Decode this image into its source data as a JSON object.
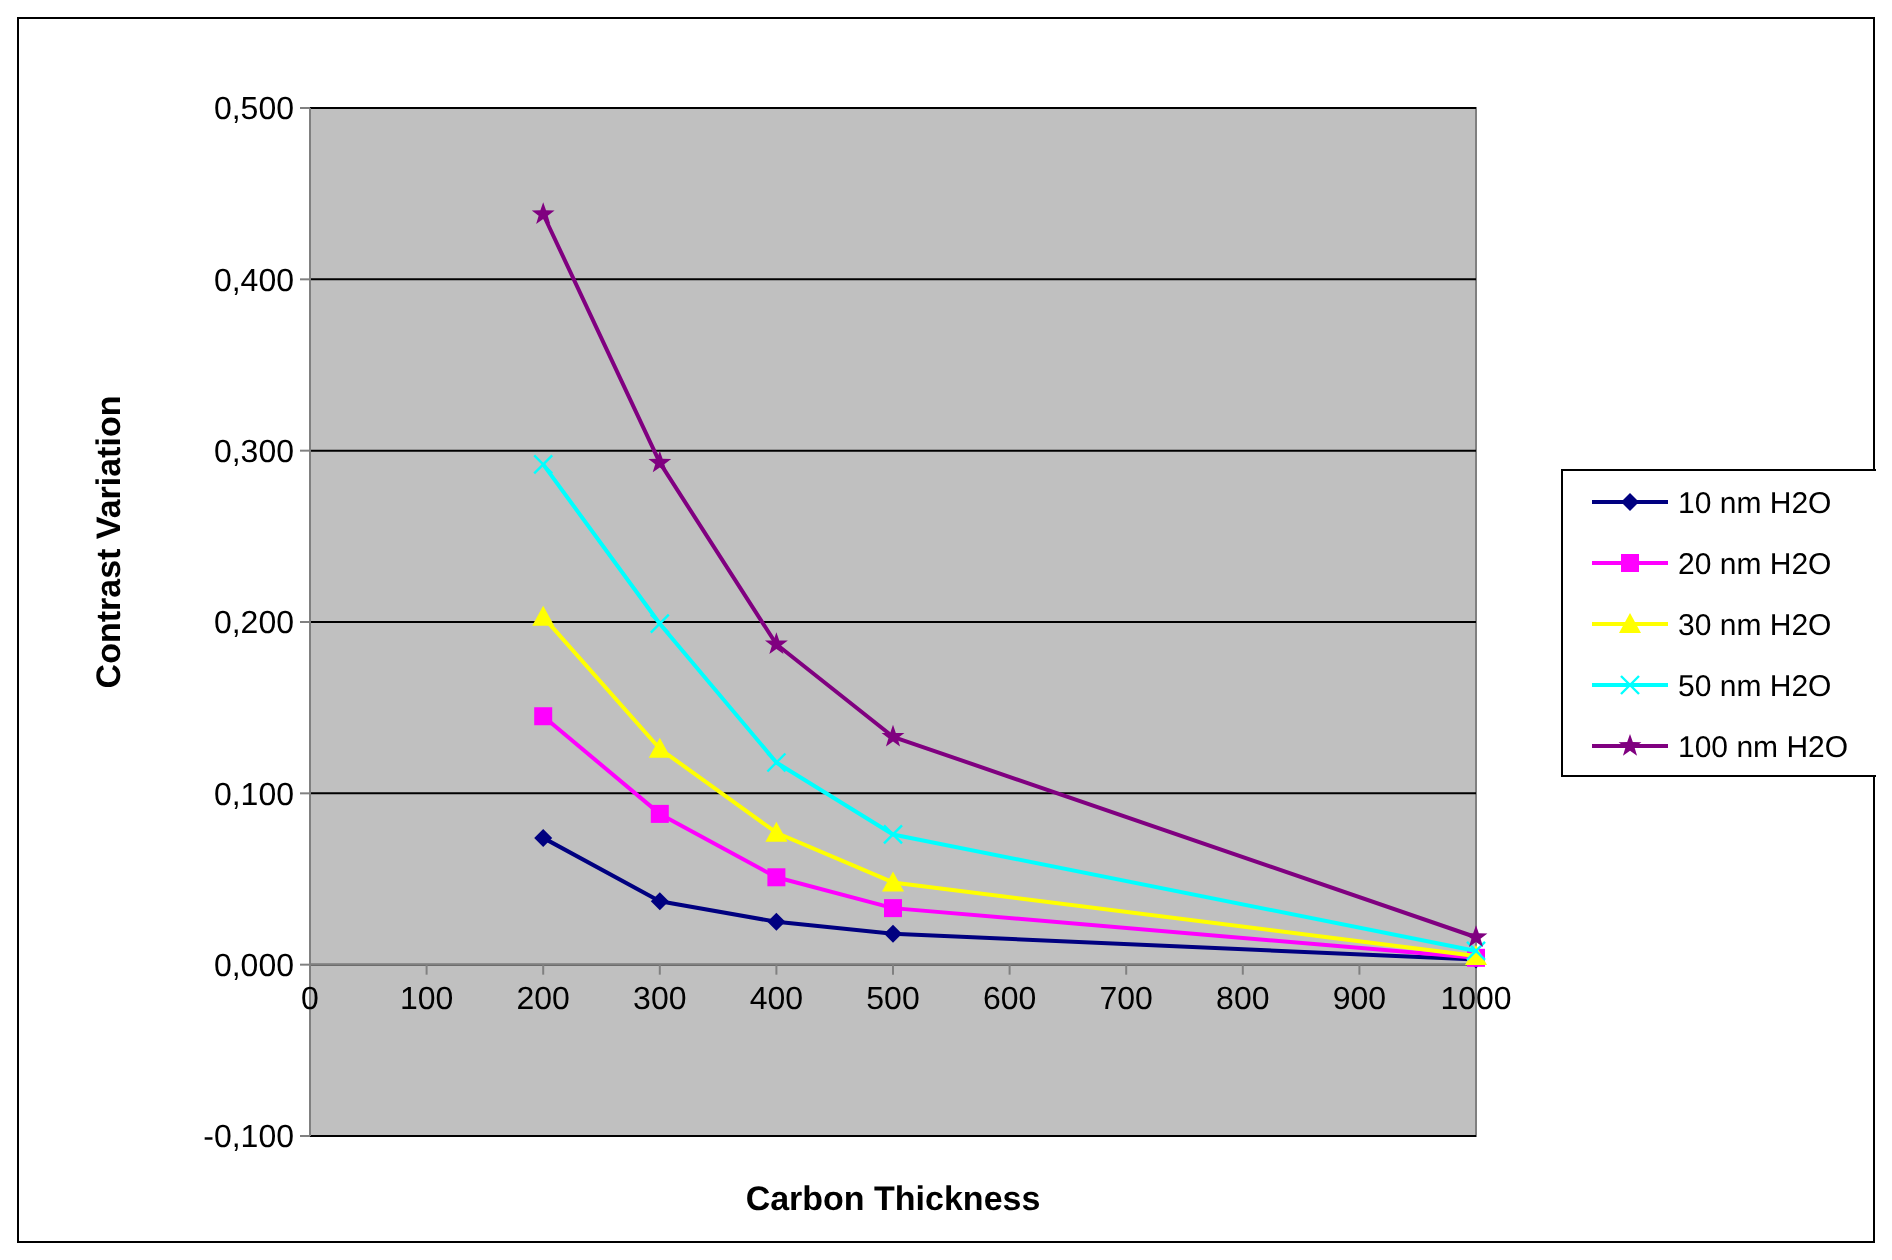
{
  "chart_data": {
    "type": "line",
    "xlabel": "Carbon  Thickness",
    "ylabel": "Contrast Variation",
    "x": [
      200,
      300,
      400,
      500,
      1000
    ],
    "xlim": [
      0,
      1000
    ],
    "xticks": [
      0,
      100,
      200,
      300,
      400,
      500,
      600,
      700,
      800,
      900,
      1000
    ],
    "ylim": [
      -0.1,
      0.5
    ],
    "yticks": [
      {
        "value": -0.1,
        "label": "-0,100"
      },
      {
        "value": 0,
        "label": "0,000"
      },
      {
        "value": 0.1,
        "label": "0,100"
      },
      {
        "value": 0.2,
        "label": "0,200"
      },
      {
        "value": 0.3,
        "label": "0,300"
      },
      {
        "value": 0.4,
        "label": "0,400"
      },
      {
        "value": 0.5,
        "label": "0,500"
      }
    ],
    "grid": "y",
    "legend": "right",
    "series": [
      {
        "name": "10 nm H2O",
        "color": "#000080",
        "marker": "diamond",
        "values": [
          0.074,
          0.037,
          0.025,
          0.018,
          0.003
        ]
      },
      {
        "name": "20 nm H2O",
        "color": "#ff00ff",
        "marker": "square",
        "values": [
          0.145,
          0.088,
          0.051,
          0.033,
          0.004
        ]
      },
      {
        "name": "30 nm H2O",
        "color": "#ffff00",
        "marker": "triangle",
        "values": [
          0.203,
          0.126,
          0.077,
          0.048,
          0.005
        ]
      },
      {
        "name": "50 nm H2O",
        "color": "#00ffff",
        "marker": "cross",
        "values": [
          0.292,
          0.199,
          0.118,
          0.076,
          0.008
        ]
      },
      {
        "name": "100 nm H2O",
        "color": "#800080",
        "marker": "star",
        "values": [
          0.438,
          0.293,
          0.187,
          0.133,
          0.016
        ]
      }
    ]
  }
}
